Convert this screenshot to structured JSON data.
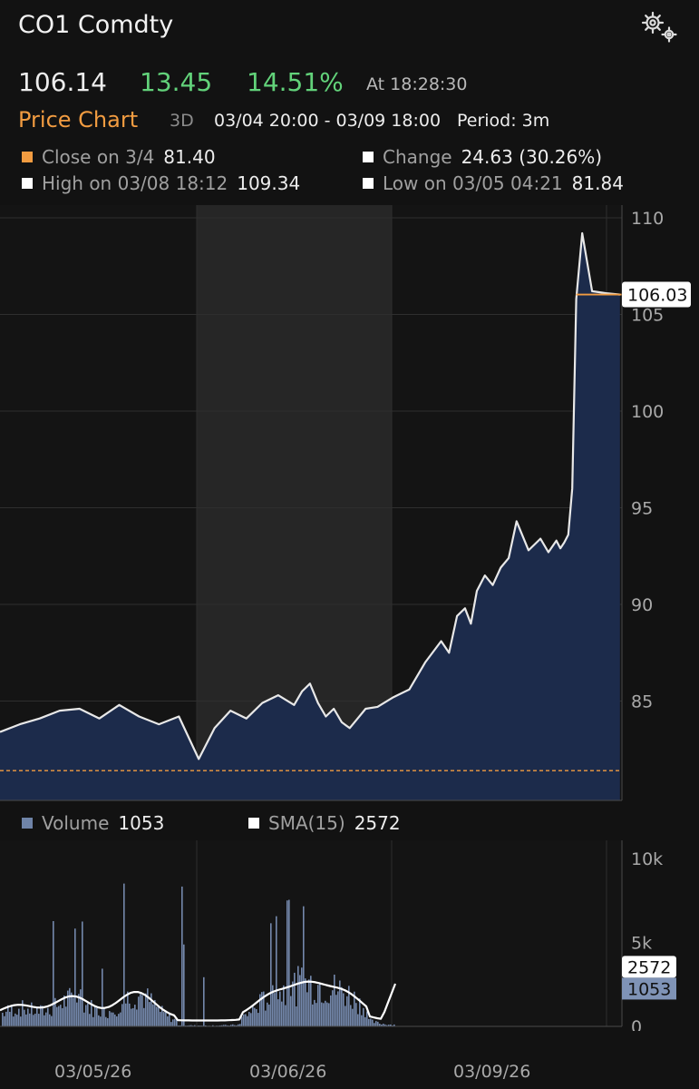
{
  "header": {
    "title": "CO1 Comdty",
    "price": "106.14",
    "change": "13.45",
    "change_pct": "14.51%",
    "as_of": "At 18:28:30"
  },
  "chart_header": {
    "label": "Price Chart",
    "range": "3D",
    "dates": "03/04 20:00 - 03/09 18:00",
    "period": "Period: 3m"
  },
  "stats": {
    "close": {
      "label": "Close on 3/4",
      "value": "81.40",
      "color": "#f29c41"
    },
    "change": {
      "label": "Change",
      "value": "24.63 (30.26%)",
      "color": "#ffffff"
    },
    "high": {
      "label": "High on 03/08 18:12",
      "value": "109.34",
      "color": "#ffffff"
    },
    "low": {
      "label": "Low on 03/05 04:21",
      "value": "81.84",
      "color": "#ffffff"
    }
  },
  "colors": {
    "up": "#62d27a",
    "accent": "#f29c41",
    "area_fill": "#1d2b4a",
    "line": "#e8e8e8",
    "volume": "#7f93b6"
  },
  "icons": {
    "settings": "gear-icon"
  },
  "chart_data": [
    {
      "type": "area",
      "x_ticks": [
        "03/05/26",
        "03/06/26",
        "03/09/26"
      ],
      "ylim": [
        80,
        110
      ],
      "y_ticks": [
        85,
        90,
        95,
        100,
        105,
        110
      ],
      "last_value_label": "106.03",
      "reference_line": 81.4,
      "grid": true,
      "x": [
        0,
        10,
        20,
        30,
        40,
        50,
        60,
        70,
        80,
        90,
        100,
        108,
        116,
        124,
        132,
        140,
        148,
        152,
        156,
        160,
        164,
        168,
        172,
        176,
        180,
        184,
        190,
        198,
        206,
        214,
        222,
        226,
        230,
        234,
        237,
        240,
        244,
        248,
        252,
        256,
        260,
        266,
        272,
        276,
        280,
        282,
        284,
        286,
        288,
        290,
        293,
        298,
        305,
        312
      ],
      "values": [
        83.4,
        83.8,
        84.1,
        84.5,
        84.6,
        84.1,
        84.8,
        84.2,
        83.8,
        84.2,
        82.0,
        83.6,
        84.5,
        84.1,
        84.9,
        85.3,
        84.8,
        85.5,
        85.9,
        84.9,
        84.2,
        84.6,
        83.9,
        83.6,
        84.1,
        84.6,
        84.7,
        85.2,
        85.6,
        87.0,
        88.1,
        87.5,
        89.4,
        89.8,
        89.0,
        90.7,
        91.5,
        91.0,
        91.9,
        92.4,
        94.3,
        92.8,
        93.4,
        92.7,
        93.3,
        92.9,
        93.2,
        93.6,
        96.0,
        105.8,
        109.2,
        106.2,
        106.1,
        106.03
      ],
      "series_line": {
        "start": 290,
        "end": 313,
        "value": 106.03
      }
    },
    {
      "type": "bar",
      "ylim": [
        0,
        10000
      ],
      "y_ticks": [
        "0",
        "5k",
        "10k"
      ],
      "volume": {
        "label": "Volume",
        "value": "1053",
        "last": 1053
      },
      "sma": {
        "label": "SMA(15)",
        "value": "2572",
        "last": 2572
      }
    }
  ]
}
